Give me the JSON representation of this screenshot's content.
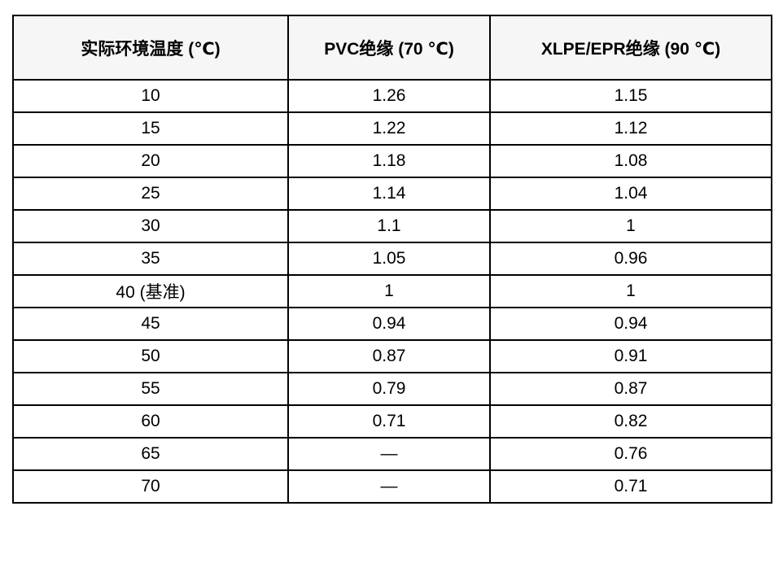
{
  "chart_data": {
    "type": "table",
    "title": "",
    "columns": [
      "实际环境温度 (℃)",
      "PVC绝缘 (70 ℃)",
      "XLPE/EPR绝缘 (90 ℃)"
    ],
    "rows": [
      [
        "10",
        "1.26",
        "1.15"
      ],
      [
        "15",
        "1.22",
        "1.12"
      ],
      [
        "20",
        "1.18",
        "1.08"
      ],
      [
        "25",
        "1.14",
        "1.04"
      ],
      [
        "30",
        "1.1",
        "1"
      ],
      [
        "35",
        "1.05",
        "0.96"
      ],
      [
        "40 (基准)",
        "1",
        "1"
      ],
      [
        "45",
        "0.94",
        "0.94"
      ],
      [
        "50",
        "0.87",
        "0.91"
      ],
      [
        "55",
        "0.79",
        "0.87"
      ],
      [
        "60",
        "0.71",
        "0.82"
      ],
      [
        "65",
        "—",
        "0.76"
      ],
      [
        "70",
        "—",
        "0.71"
      ]
    ],
    "missing_value_symbol": "—",
    "layout": {
      "grid": true,
      "header_background": "#f6f6f6",
      "border_color": "#000000",
      "text_color": "#000000",
      "body_background": "#ffffff"
    }
  }
}
